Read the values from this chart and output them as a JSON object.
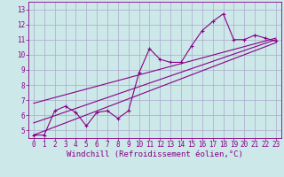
{
  "xlabel": "Windchill (Refroidissement éolien,°C)",
  "ylabel": "",
  "bg_color": "#cce8e8",
  "grid_color": "#aaaacc",
  "line_color": "#880088",
  "xlim": [
    -0.5,
    23.5
  ],
  "ylim": [
    4.5,
    13.5
  ],
  "xticks": [
    0,
    1,
    2,
    3,
    4,
    5,
    6,
    7,
    8,
    9,
    10,
    11,
    12,
    13,
    14,
    15,
    16,
    17,
    18,
    19,
    20,
    21,
    22,
    23
  ],
  "yticks": [
    5,
    6,
    7,
    8,
    9,
    10,
    11,
    12,
    13
  ],
  "data_x": [
    0,
    1,
    2,
    3,
    4,
    5,
    6,
    7,
    8,
    9,
    10,
    11,
    12,
    13,
    14,
    15,
    16,
    17,
    18,
    19,
    20,
    21,
    22,
    23
  ],
  "data_y": [
    4.7,
    4.7,
    6.3,
    6.6,
    6.2,
    5.3,
    6.2,
    6.3,
    5.8,
    6.3,
    8.8,
    10.4,
    9.7,
    9.5,
    9.5,
    10.6,
    11.6,
    12.2,
    12.7,
    11.0,
    11.0,
    11.3,
    11.1,
    10.9
  ],
  "trend1_x": [
    0,
    23
  ],
  "trend1_y": [
    4.7,
    10.8
  ],
  "trend2_x": [
    0,
    23
  ],
  "trend2_y": [
    5.5,
    11.0
  ],
  "trend3_x": [
    0,
    23
  ],
  "trend3_y": [
    6.8,
    11.1
  ],
  "font_family": "monospace",
  "tick_fontsize": 5.5,
  "label_fontsize": 6.5
}
